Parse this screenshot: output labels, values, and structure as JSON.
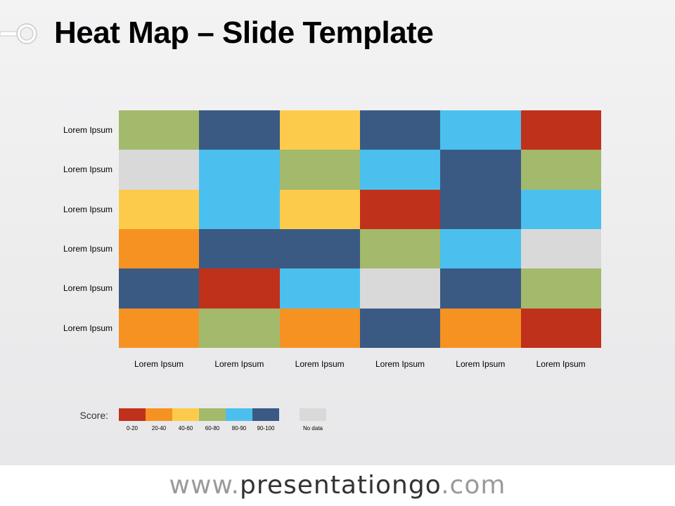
{
  "title": "Heat Map – Slide Template",
  "colors": {
    "score_0_20": "#C0311B",
    "score_20_40": "#F59222",
    "score_40_60": "#FDCB4C",
    "score_60_80": "#A3B96B",
    "score_80_90": "#4BC0EE",
    "score_90_100": "#3A5A84",
    "no_data": "#D9D9D9"
  },
  "chart_data": {
    "type": "heatmap",
    "title": "Heat Map – Slide Template",
    "row_labels": [
      "Lorem Ipsum",
      "Lorem Ipsum",
      "Lorem Ipsum",
      "Lorem Ipsum",
      "Lorem Ipsum",
      "Lorem Ipsum"
    ],
    "col_labels": [
      "Lorem Ipsum",
      "Lorem Ipsum",
      "Lorem Ipsum",
      "Lorem Ipsum",
      "Lorem Ipsum",
      "Lorem Ipsum"
    ],
    "categories": [
      "0-20",
      "20-40",
      "40-60",
      "60-80",
      "80-90",
      "90-100",
      "No data"
    ],
    "cells": [
      [
        "60-80",
        "90-100",
        "40-60",
        "90-100",
        "80-90",
        "0-20"
      ],
      [
        "No data",
        "80-90",
        "60-80",
        "80-90",
        "90-100",
        "60-80"
      ],
      [
        "40-60",
        "80-90",
        "40-60",
        "0-20",
        "90-100",
        "80-90"
      ],
      [
        "20-40",
        "90-100",
        "90-100",
        "60-80",
        "80-90",
        "No data"
      ],
      [
        "90-100",
        "0-20",
        "80-90",
        "No data",
        "90-100",
        "60-80"
      ],
      [
        "20-40",
        "60-80",
        "20-40",
        "90-100",
        "20-40",
        "0-20"
      ]
    ]
  },
  "legend": {
    "label": "Score:",
    "items": [
      {
        "label": "0-20",
        "color": "#C0311B"
      },
      {
        "label": "20-40",
        "color": "#F59222"
      },
      {
        "label": "40-60",
        "color": "#FDCB4C"
      },
      {
        "label": "60-80",
        "color": "#A3B96B"
      },
      {
        "label": "80-90",
        "color": "#4BC0EE"
      },
      {
        "label": "90-100",
        "color": "#3A5A84"
      }
    ],
    "no_data": {
      "label": "No data",
      "color": "#D9D9D9"
    }
  },
  "footer": {
    "prefix": "www.",
    "brand": "presentationgo",
    "suffix": ".com"
  }
}
